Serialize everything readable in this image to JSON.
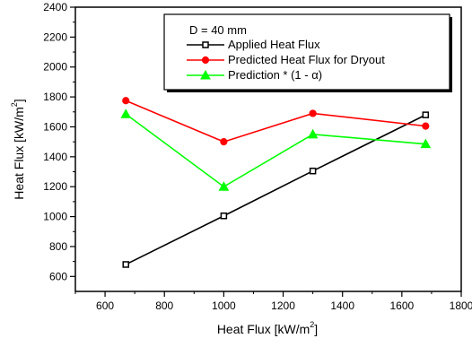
{
  "chart_data": {
    "type": "line",
    "title": "",
    "xlabel": "Heat Flux [kW/m",
    "xlabel_sup": "2",
    "xlabel_end": "]",
    "ylabel": "Heat Flux [kW/m",
    "ylabel_sup": "2",
    "ylabel_end": "]",
    "xlim": [
      500,
      1800
    ],
    "ylim": [
      500,
      2400
    ],
    "x_ticks": [
      600,
      800,
      1000,
      1200,
      1400,
      1600,
      1800
    ],
    "y_ticks": [
      600,
      800,
      1000,
      1200,
      1400,
      1600,
      1800,
      2000,
      2200,
      2400
    ],
    "grid": false,
    "legend_title": "D = 40 mm",
    "legend_position": "top-right",
    "series": [
      {
        "name": "Applied Heat Flux",
        "color": "#000000",
        "marker": "square",
        "x": [
          670,
          1000,
          1300,
          1680
        ],
        "y": [
          680,
          1005,
          1305,
          1680
        ]
      },
      {
        "name": "Predicted Heat Flux for Dryout",
        "color": "#ff0000",
        "marker": "circle",
        "x": [
          670,
          1000,
          1300,
          1680
        ],
        "y": [
          1775,
          1500,
          1690,
          1605
        ]
      },
      {
        "name": "Prediction * (1 - α)",
        "color": "#00ff00",
        "marker": "triangle",
        "x": [
          670,
          1000,
          1300,
          1680
        ],
        "y": [
          1685,
          1200,
          1550,
          1485
        ]
      }
    ]
  }
}
